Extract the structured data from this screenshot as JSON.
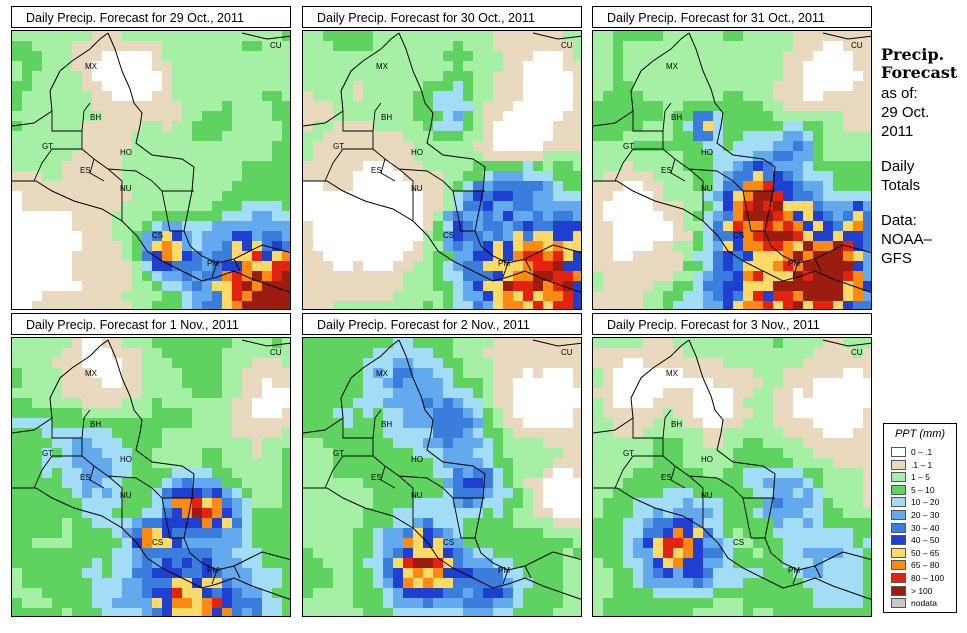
{
  "panels": [
    {
      "title": "Daily Precip. Forecast for  29 Oct., 2011",
      "day": 0
    },
    {
      "title": "Daily Precip. Forecast for  30 Oct., 2011",
      "day": 1
    },
    {
      "title": "Daily Precip. Forecast for  31 Oct., 2011",
      "day": 2
    },
    {
      "title": "Daily Precip. Forecast for  1 Nov., 2011",
      "day": 3
    },
    {
      "title": "Daily Precip. Forecast for  2 Nov., 2011",
      "day": 4
    },
    {
      "title": "Daily Precip. Forecast for  3 Nov., 2011",
      "day": 5
    }
  ],
  "country_labels": [
    "MX",
    "BH",
    "GT",
    "HO",
    "ES",
    "NU",
    "CS",
    "PM",
    "CU"
  ],
  "sidebar": {
    "heading1": "Precip.",
    "heading2": "Forecast",
    "asof_label": "as of:",
    "date_line1": "29 Oct.",
    "date_line2": "2011",
    "totals_line1": "Daily",
    "totals_line2": "Totals",
    "data_line1": "Data:",
    "data_line2": "NOAA–",
    "data_line3": "GFS"
  },
  "legend": {
    "title": "PPT (mm)",
    "classes": [
      {
        "label": "0 – .1",
        "color": "#ffffff"
      },
      {
        "label": ".1 – 1",
        "color": "#e9d9bf"
      },
      {
        "label": "1 – 5",
        "color": "#a5f0a5"
      },
      {
        "label": "5 – 10",
        "color": "#5fd35f"
      },
      {
        "label": "10 – 20",
        "color": "#a3ddf5"
      },
      {
        "label": "20 – 30",
        "color": "#63a9ee"
      },
      {
        "label": "30 – 40",
        "color": "#3b7ddd"
      },
      {
        "label": "40 – 50",
        "color": "#1f3fd0"
      },
      {
        "label": "50 – 65",
        "color": "#fdd965"
      },
      {
        "label": "65 – 80",
        "color": "#fb8a12"
      },
      {
        "label": "80 – 100",
        "color": "#e3230f"
      },
      {
        "label": "> 100",
        "color": "#9c1c10"
      },
      {
        "label": "nodata",
        "color": "#c8c8c8"
      }
    ]
  }
}
